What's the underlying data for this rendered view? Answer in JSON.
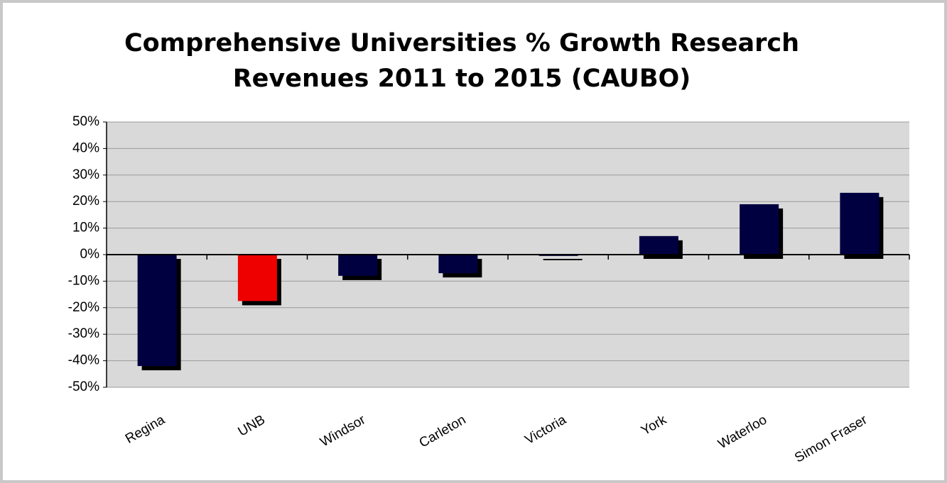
{
  "chart_data": {
    "type": "bar",
    "title": [
      "Comprehensive Universities % Growth Research",
      "Revenues 2011 to 2015 (CAUBO)"
    ],
    "categories": [
      "Regina",
      "UNB",
      "Windsor",
      "Carleton",
      "Victoria",
      "York",
      "Waterloo",
      "Simon Fraser"
    ],
    "values": [
      -42,
      -17.5,
      -8,
      -7,
      -0.5,
      7,
      19,
      23.3
    ],
    "colors": [
      "#000040",
      "#ee0000",
      "#000040",
      "#000040",
      "#000040",
      "#000040",
      "#000040",
      "#000040"
    ],
    "ylim": [
      -50,
      50
    ],
    "yticks": [
      {
        "value": -50,
        "label": "-50%"
      },
      {
        "value": -40,
        "label": "-40%"
      },
      {
        "value": -30,
        "label": "-30%"
      },
      {
        "value": -20,
        "label": "-20%"
      },
      {
        "value": -10,
        "label": "-10%"
      },
      {
        "value": 0,
        "label": "0%"
      },
      {
        "value": 10,
        "label": "10%"
      },
      {
        "value": 20,
        "label": "20%"
      },
      {
        "value": 30,
        "label": "30%"
      },
      {
        "value": 40,
        "label": "40%"
      },
      {
        "value": 50,
        "label": "50%"
      }
    ],
    "grid": true
  }
}
